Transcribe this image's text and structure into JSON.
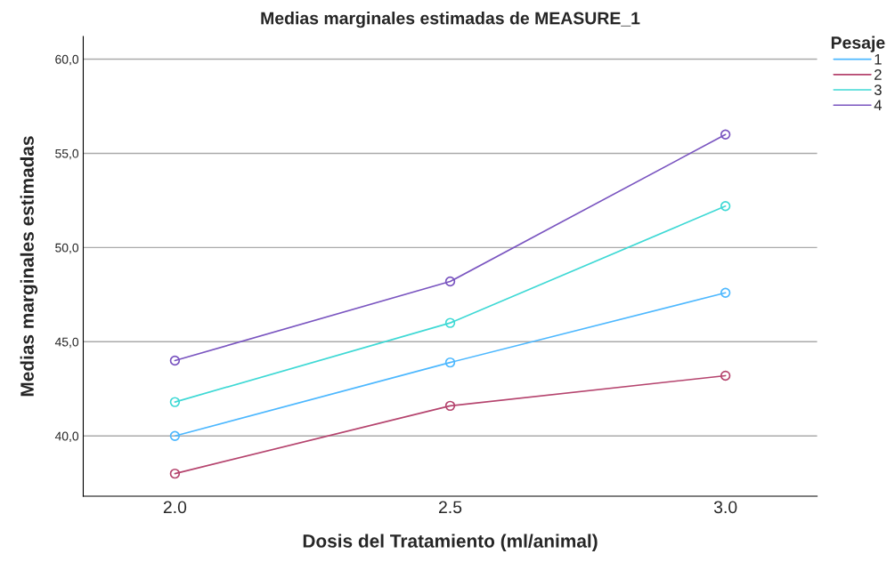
{
  "chart_data": {
    "type": "line",
    "title": "Medias marginales estimadas de MEASURE_1",
    "xlabel": "Dosis del Tratamiento (ml/animal)",
    "ylabel": "Medias marginales estimadas",
    "legend_title": "Pesaje",
    "categories": [
      "2.0",
      "2.5",
      "3.0"
    ],
    "series": [
      {
        "name": "1",
        "color": "#4db8ff",
        "values": [
          40.0,
          43.9,
          47.6
        ]
      },
      {
        "name": "2",
        "color": "#b5446e",
        "values": [
          38.0,
          41.6,
          43.2
        ]
      },
      {
        "name": "3",
        "color": "#3fd9d5",
        "values": [
          41.8,
          46.0,
          52.2
        ]
      },
      {
        "name": "4",
        "color": "#7a55c0",
        "values": [
          44.0,
          48.2,
          56.0
        ]
      }
    ],
    "ylim": [
      36.8,
      61.2
    ],
    "yticks": [
      {
        "value": 40,
        "label": "40,0"
      },
      {
        "value": 45,
        "label": "45,0"
      },
      {
        "value": 50,
        "label": "50,0"
      },
      {
        "value": 55,
        "label": "55,0"
      },
      {
        "value": 60,
        "label": "60,0"
      }
    ],
    "grid": "y",
    "legend": "top right",
    "marker": "circle",
    "line_style": "solid"
  }
}
